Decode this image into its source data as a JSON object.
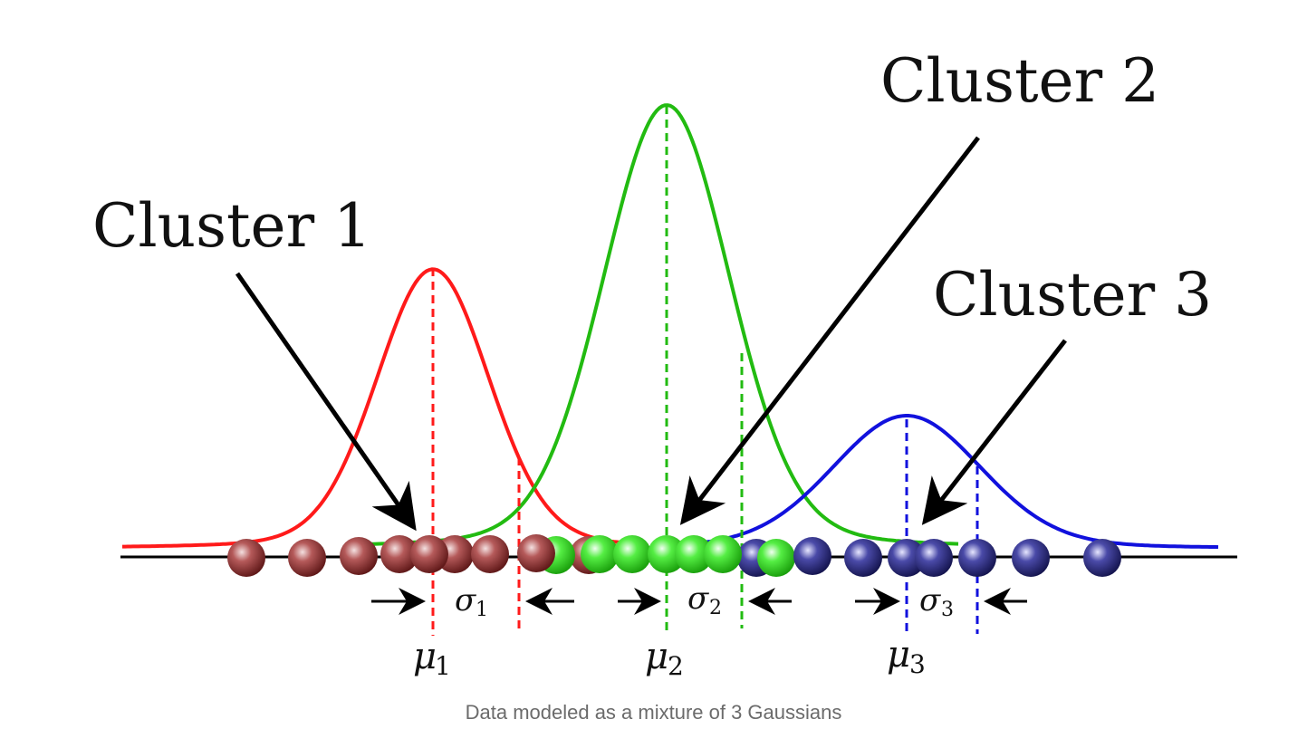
{
  "caption": "Data modeled as a mixture of 3 Gaussians",
  "colors": {
    "cluster1_curve": "#ff1a1a",
    "cluster1_points": "#8b2e2e",
    "cluster2_curve": "#22bb11",
    "cluster2_points": "#33dd22",
    "cluster3_curve": "#1111dd",
    "cluster3_points": "#2a2a8a",
    "axis": "#000000",
    "arrow": "#000000"
  },
  "clusters": [
    {
      "label": "Cluster 1",
      "mean_symbol": "μ",
      "mean_subscript": "1",
      "sigma_symbol": "σ",
      "sigma_subscript": "1",
      "peak_level": 0.63
    },
    {
      "label": "Cluster 2",
      "mean_symbol": "μ",
      "mean_subscript": "2",
      "sigma_symbol": "σ",
      "sigma_subscript": "2",
      "peak_level": 1.0
    },
    {
      "label": "Cluster 3",
      "mean_symbol": "μ",
      "mean_subscript": "3",
      "sigma_symbol": "σ",
      "sigma_subscript": "3",
      "peak_level": 0.3
    }
  ]
}
